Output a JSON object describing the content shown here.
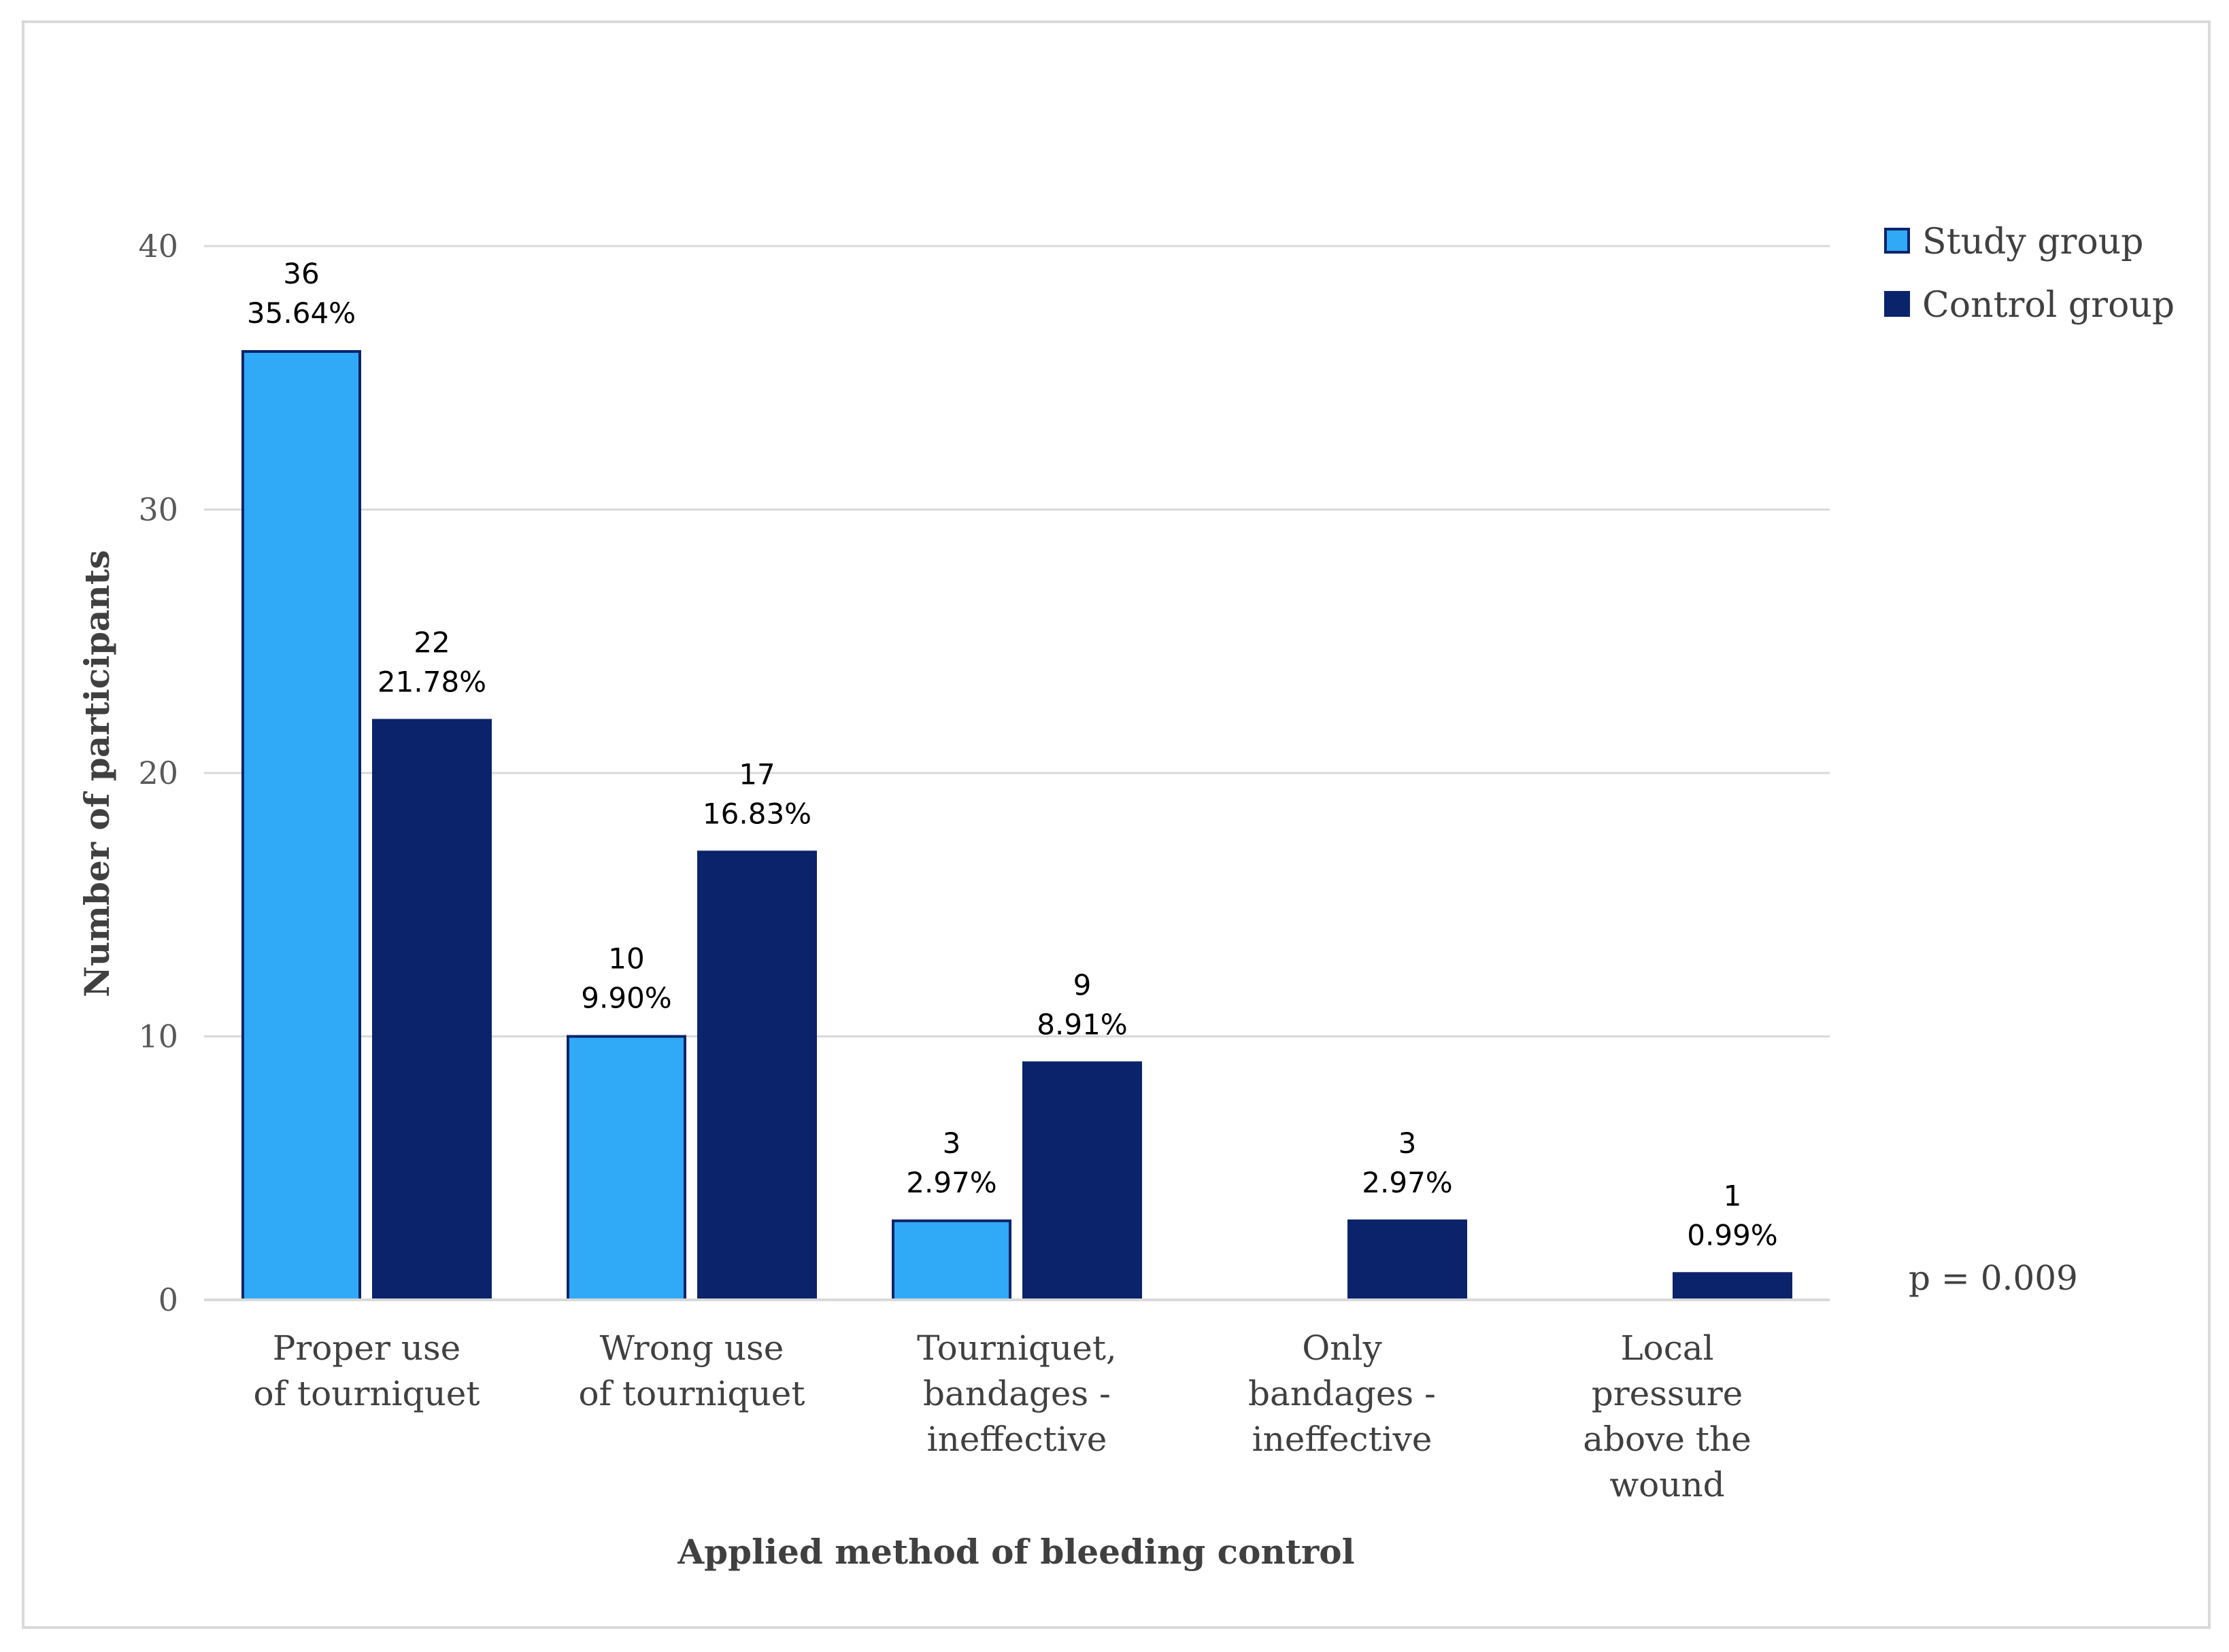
{
  "chart_data": {
    "type": "bar",
    "title": "",
    "xlabel": "Applied method of bleeding control",
    "ylabel": "Number of participants",
    "ylim": [
      0,
      40
    ],
    "yticks": [
      0,
      10,
      20,
      30,
      40
    ],
    "grid": true,
    "legend_position": "top-right",
    "categories": [
      [
        "Proper use",
        "of tourniquet"
      ],
      [
        "Wrong use",
        "of tourniquet"
      ],
      [
        "Tourniquet,",
        "bandages -",
        "ineffective"
      ],
      [
        "Only",
        "bandages -",
        "ineffective"
      ],
      [
        "Local",
        "pressure",
        "above the",
        "wound"
      ]
    ],
    "series": [
      {
        "name": "Study group",
        "color": "#30aaf7",
        "values": [
          36,
          10,
          3,
          null,
          null
        ],
        "percent_labels": [
          "35.64%",
          "9.90%",
          "2.97%",
          null,
          null
        ]
      },
      {
        "name": "Control group",
        "color": "#0b236b",
        "values": [
          22,
          17,
          9,
          3,
          1
        ],
        "percent_labels": [
          "21.78%",
          "16.83%",
          "8.91%",
          "2.97%",
          "0.99%"
        ]
      }
    ],
    "annotation": "p = 0.009"
  }
}
